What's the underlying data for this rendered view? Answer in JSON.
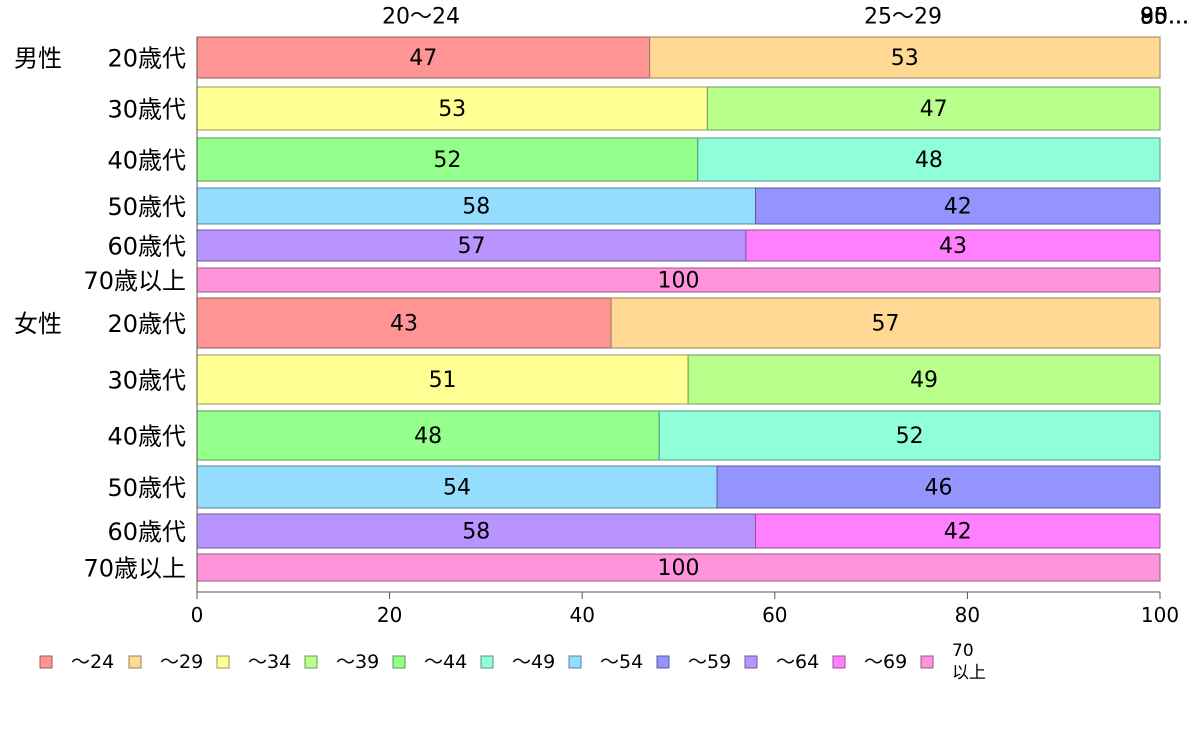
{
  "chart_data": {
    "type": "bar",
    "orientation": "horizontal",
    "stacked": true,
    "xlim": [
      0,
      100
    ],
    "x_ticks": [
      "0",
      "20",
      "40",
      "60",
      "80",
      "100"
    ],
    "top_labels": [
      "20〜24",
      "25〜29",
      "80...",
      "85...",
      "90...",
      "95..."
    ],
    "groups": [
      {
        "label": "男性"
      },
      {
        "label": "女性"
      }
    ],
    "categories": [
      {
        "group": "男性",
        "label": "20歳代",
        "segments": [
          {
            "series": "〜24",
            "value": 47
          },
          {
            "series": "〜29",
            "value": 53
          }
        ]
      },
      {
        "group": "男性",
        "label": "30歳代",
        "segments": [
          {
            "series": "〜34",
            "value": 53
          },
          {
            "series": "〜39",
            "value": 47
          }
        ]
      },
      {
        "group": "男性",
        "label": "40歳代",
        "segments": [
          {
            "series": "〜44",
            "value": 52
          },
          {
            "series": "〜49",
            "value": 48
          }
        ]
      },
      {
        "group": "男性",
        "label": "50歳代",
        "segments": [
          {
            "series": "〜54",
            "value": 58
          },
          {
            "series": "〜59",
            "value": 42
          }
        ]
      },
      {
        "group": "男性",
        "label": "60歳代",
        "segments": [
          {
            "series": "〜64",
            "value": 57
          },
          {
            "series": "〜69",
            "value": 43
          }
        ]
      },
      {
        "group": "男性",
        "label": "70歳以上",
        "segments": [
          {
            "series": "70以上",
            "value": 100
          }
        ]
      },
      {
        "group": "女性",
        "label": "20歳代",
        "segments": [
          {
            "series": "〜24",
            "value": 43
          },
          {
            "series": "〜29",
            "value": 57
          }
        ]
      },
      {
        "group": "女性",
        "label": "30歳代",
        "segments": [
          {
            "series": "〜34",
            "value": 51
          },
          {
            "series": "〜39",
            "value": 49
          }
        ]
      },
      {
        "group": "女性",
        "label": "40歳代",
        "segments": [
          {
            "series": "〜44",
            "value": 48
          },
          {
            "series": "〜49",
            "value": 52
          }
        ]
      },
      {
        "group": "女性",
        "label": "50歳代",
        "segments": [
          {
            "series": "〜54",
            "value": 54
          },
          {
            "series": "〜59",
            "value": 46
          }
        ]
      },
      {
        "group": "女性",
        "label": "60歳代",
        "segments": [
          {
            "series": "〜64",
            "value": 58
          },
          {
            "series": "〜69",
            "value": 42
          }
        ]
      },
      {
        "group": "女性",
        "label": "70歳以上",
        "segments": [
          {
            "series": "70以上",
            "value": 100
          }
        ]
      }
    ],
    "series": [
      {
        "name": "〜24",
        "color": "#ff9494"
      },
      {
        "name": "〜29",
        "color": "#ffd993"
      },
      {
        "name": "〜34",
        "color": "#ffff94"
      },
      {
        "name": "〜39",
        "color": "#b9ff8c"
      },
      {
        "name": "〜44",
        "color": "#95ff8c"
      },
      {
        "name": "〜49",
        "color": "#8fffd7"
      },
      {
        "name": "〜54",
        "color": "#94ddff"
      },
      {
        "name": "〜59",
        "color": "#9494ff"
      },
      {
        "name": "〜64",
        "color": "#b994ff"
      },
      {
        "name": "〜69",
        "color": "#ff80ff"
      },
      {
        "name": "70以上",
        "legend_lines": [
          "70",
          "以上"
        ],
        "color": "#ff94dc"
      }
    ],
    "legend_position": "bottom",
    "grid": false
  }
}
